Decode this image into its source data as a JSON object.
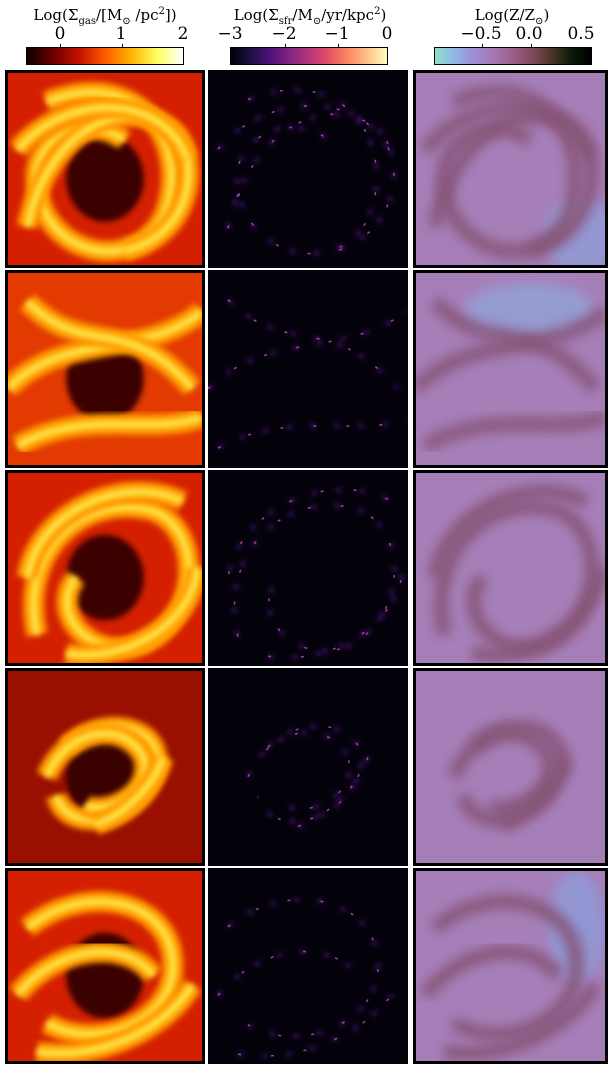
{
  "colorbars": [
    {
      "label_prefix": "Log(Σ",
      "label_sub": "gas",
      "label_mid": "/[M",
      "label_sub2": "⊙",
      "label_mid2": " /pc",
      "label_sup": "2",
      "label_suffix": "])",
      "ticks": [
        "0",
        "1",
        "2"
      ],
      "tick_values": [
        0,
        1,
        2
      ],
      "range": [
        -0.4,
        2
      ],
      "colormap": "hot",
      "colors": [
        "#0d0000",
        "#6b0000",
        "#c41100",
        "#ff5a00",
        "#ffb300",
        "#ffff60",
        "#ffffff"
      ]
    },
    {
      "label_prefix": "Log(Σ",
      "label_sub": "sfr",
      "label_mid": "/M",
      "label_sub2": "⊙",
      "label_mid2": "/yr/kpc",
      "label_sup": "2",
      "label_suffix": ")",
      "ticks": [
        "−3",
        "−2",
        "−1",
        "0"
      ],
      "tick_values": [
        -3,
        -2,
        -1,
        0
      ],
      "range": [
        -3.2,
        0
      ],
      "colormap": "magma",
      "colors": [
        "#000004",
        "#1c1044",
        "#4f127b",
        "#812581",
        "#b5367a",
        "#e55064",
        "#fb8761",
        "#fec287",
        "#fcfdbf"
      ]
    },
    {
      "label_prefix": "Log(Z/Z",
      "label_sub": "⊙",
      "label_mid": "",
      "label_sub2": "",
      "label_mid2": "",
      "label_sup": "",
      "label_suffix": ")",
      "ticks": [
        "−0.5",
        "0.0",
        "0.5"
      ],
      "tick_values": [
        -0.5,
        0,
        0.5
      ],
      "range": [
        -0.8,
        0.6
      ],
      "colormap": "cubehelix-like",
      "colors": [
        "#8fe0c8",
        "#8fb5e6",
        "#9d8ed1",
        "#a777b1",
        "#9c5f8a",
        "#7e4b5c",
        "#4c3526",
        "#0b1a0a",
        "#000000"
      ]
    }
  ],
  "columns": [
    "gas-surface-density",
    "sfr-surface-density",
    "metallicity"
  ],
  "rows": 5
}
